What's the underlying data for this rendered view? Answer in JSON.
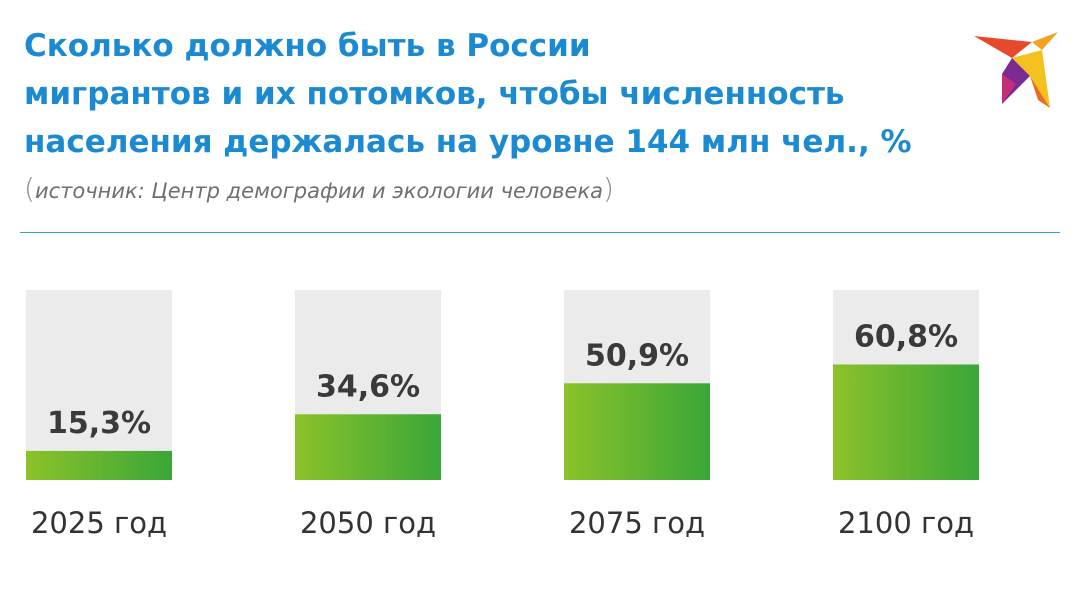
{
  "header": {
    "title_lines": [
      "Сколько должно быть в России",
      "мигрантов и их потомков, чтобы численность",
      "населения держалась на уровне 144 млн чел., %"
    ],
    "source_open": "(",
    "source_text": "источник: Центр демографии и экологии человека",
    "source_close": ")"
  },
  "colors": {
    "title": "#1b8ad0",
    "bar_track": "#ebebeb",
    "bar_fill_start": "#8cc22a",
    "bar_fill_end": "#3aa638",
    "value_label": "#3a3a3a",
    "category_label": "#333333"
  },
  "logo": {
    "icon": "bird-logo-icon"
  },
  "chart_data": {
    "type": "bar",
    "categories": [
      "2025 год",
      "2050 год",
      "2075 год",
      "2100 год"
    ],
    "values": [
      15.3,
      34.6,
      50.9,
      60.8
    ],
    "value_labels": [
      "15,3%",
      "34,6%",
      "50,9%",
      "60,8%"
    ],
    "ylim": [
      0,
      100
    ],
    "grid": false,
    "legend": "none"
  }
}
